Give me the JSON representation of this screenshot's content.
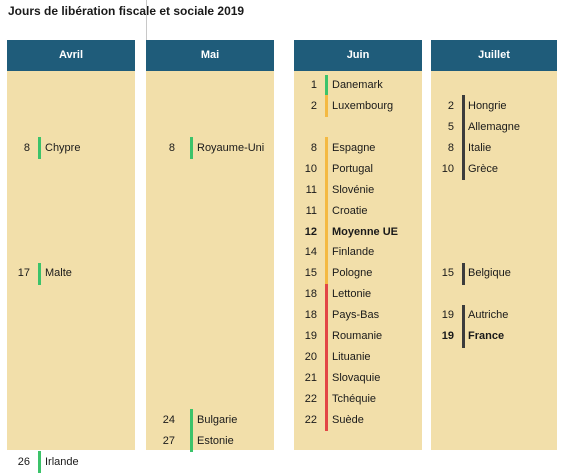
{
  "title": "Jours de libération fiscale et sociale 2019",
  "colors": {
    "header": "#1f5c7a",
    "panel": "#f2dfaa",
    "green": "#3cc36a",
    "orange": "#f4b942",
    "red": "#e24646",
    "dark": "#3c3c3c"
  },
  "chart_data": {
    "type": "table",
    "columns": [
      {
        "month": "Avril",
        "entries": [
          {
            "day": "8",
            "country": "Chypre",
            "color": "green"
          },
          {
            "day": "17",
            "country": "Malte",
            "color": "green"
          },
          {
            "day": "26",
            "country": "Irlande",
            "color": "green"
          }
        ]
      },
      {
        "month": "Mai",
        "entries": [
          {
            "day": "8",
            "country": "Royaume-Uni",
            "color": "green"
          },
          {
            "day": "24",
            "country": "Bulgarie",
            "color": "green"
          },
          {
            "day": "27",
            "country": "Estonie",
            "color": "green"
          }
        ]
      },
      {
        "month": "Juin",
        "entries": [
          {
            "day": "1",
            "country": "Danemark",
            "color": "green"
          },
          {
            "day": "2",
            "country": "Luxembourg",
            "color": "orange"
          },
          {
            "day": "8",
            "country": "Espagne",
            "color": "orange"
          },
          {
            "day": "10",
            "country": "Portugal",
            "color": "orange"
          },
          {
            "day": "11",
            "country": "Slovénie",
            "color": "orange"
          },
          {
            "day": "11",
            "country": "Croatie",
            "color": "orange"
          },
          {
            "day": "12",
            "country": "Moyenne UE",
            "color": "orange",
            "bold": true
          },
          {
            "day": "14",
            "country": "Finlande",
            "color": "orange"
          },
          {
            "day": "15",
            "country": "Pologne",
            "color": "orange"
          },
          {
            "day": "18",
            "country": "Lettonie",
            "color": "red"
          },
          {
            "day": "18",
            "country": "Pays-Bas",
            "color": "red"
          },
          {
            "day": "19",
            "country": "Roumanie",
            "color": "red"
          },
          {
            "day": "20",
            "country": "Lituanie",
            "color": "red"
          },
          {
            "day": "21",
            "country": "Slovaquie",
            "color": "red"
          },
          {
            "day": "22",
            "country": "Tchéquie",
            "color": "red"
          },
          {
            "day": "22",
            "country": "Suède",
            "color": "red"
          }
        ]
      },
      {
        "month": "Juillet",
        "entries": [
          {
            "day": "2",
            "country": "Hongrie",
            "color": "dark"
          },
          {
            "day": "5",
            "country": "Allemagne",
            "color": "dark"
          },
          {
            "day": "8",
            "country": "Italie",
            "color": "dark"
          },
          {
            "day": "10",
            "country": "Grèce",
            "color": "dark"
          },
          {
            "day": "15",
            "country": "Belgique",
            "color": "dark"
          },
          {
            "day": "19",
            "country": "Autriche",
            "color": "dark"
          },
          {
            "day": "19",
            "country": "France",
            "color": "dark",
            "bold": true
          }
        ]
      }
    ]
  }
}
